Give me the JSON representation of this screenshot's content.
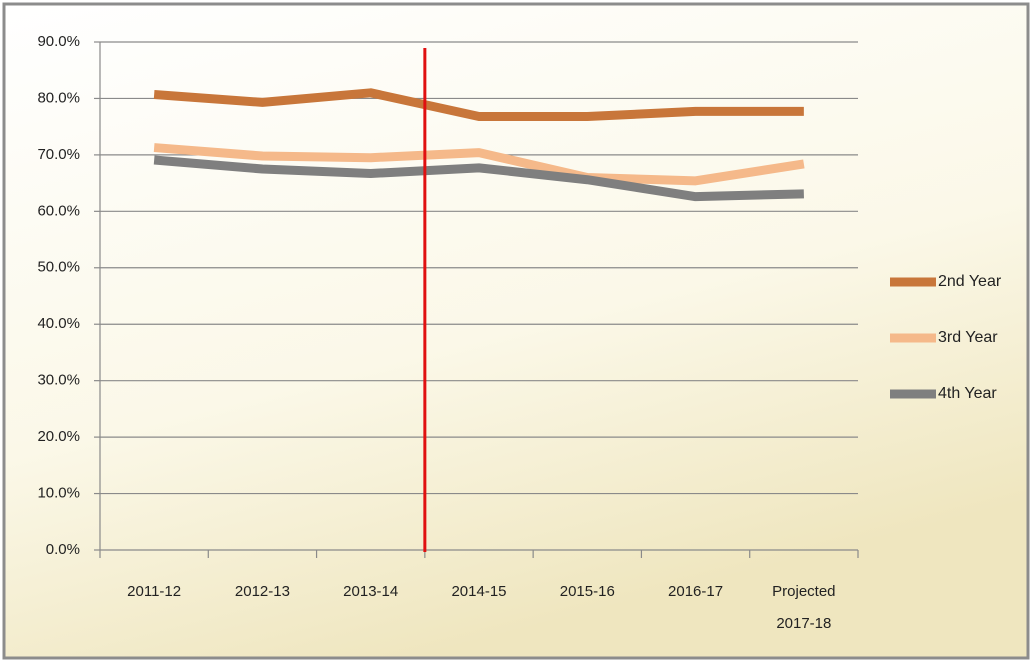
{
  "chart_data": {
    "type": "line",
    "categories": [
      "2011-12",
      "2012-13",
      "2013-14",
      "2014-15",
      "2015-16",
      "2016-17",
      "Projected 2017-18"
    ],
    "series": [
      {
        "name": "2nd Year",
        "color": "#c8763a",
        "values": [
          80.7,
          79.3,
          81.0,
          76.8,
          76.8,
          77.7,
          77.7
        ]
      },
      {
        "name": "3rd Year",
        "color": "#f5b98a",
        "values": [
          71.3,
          69.8,
          69.5,
          70.4,
          66.0,
          65.4,
          68.4
        ]
      },
      {
        "name": "4th Year",
        "color": "#7f7f7f",
        "values": [
          69.1,
          67.5,
          66.7,
          67.7,
          65.6,
          62.6,
          63.1
        ]
      }
    ],
    "ylim": [
      0,
      90
    ],
    "yticks": [
      {
        "value": 0,
        "label": "0.0%"
      },
      {
        "value": 10,
        "label": "10.0%"
      },
      {
        "value": 20,
        "label": "20.0%"
      },
      {
        "value": 30,
        "label": "30.0%"
      },
      {
        "value": 40,
        "label": "40.0%"
      },
      {
        "value": 50,
        "label": "50.0%"
      },
      {
        "value": 60,
        "label": "60.0%"
      },
      {
        "value": 70,
        "label": "70.0%"
      },
      {
        "value": 80,
        "label": "80.0%"
      },
      {
        "value": 90,
        "label": "90.0%"
      }
    ],
    "grid": true,
    "legend": "right"
  }
}
